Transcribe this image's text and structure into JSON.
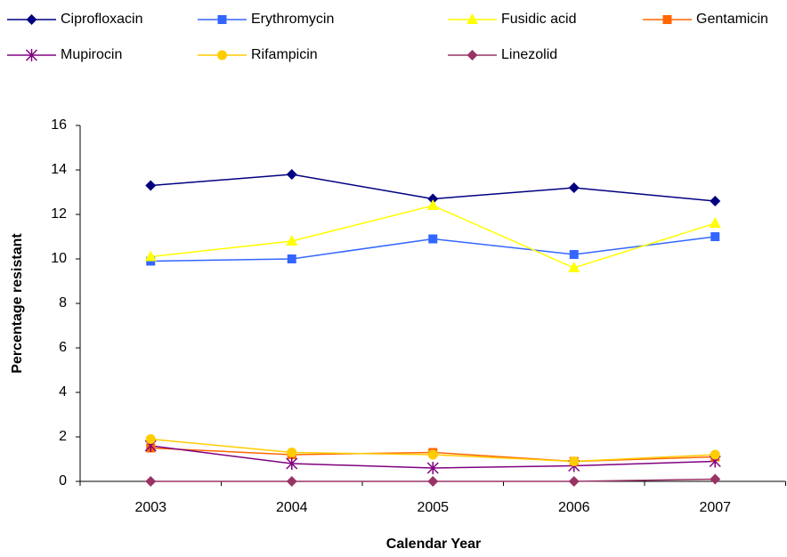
{
  "chart_data": {
    "type": "line",
    "xlabel": "Calendar Year",
    "ylabel": "Percentage resistant",
    "categories": [
      "2003",
      "2004",
      "2005",
      "2006",
      "2007"
    ],
    "ylim": [
      0,
      16
    ],
    "yticks": [
      0,
      2,
      4,
      6,
      8,
      10,
      12,
      14,
      16
    ],
    "grid": false,
    "legend": "top",
    "series": [
      {
        "name": "Ciprofloxacin",
        "color": "#000080",
        "marker": "diamond",
        "values": [
          13.3,
          13.8,
          12.7,
          13.2,
          12.6
        ]
      },
      {
        "name": "Erythromycin",
        "color": "#3366ff",
        "marker": "square",
        "values": [
          9.9,
          10.0,
          10.9,
          10.2,
          11.0
        ]
      },
      {
        "name": "Fusidic acid",
        "color": "#ffff00",
        "marker": "triangle",
        "values": [
          10.1,
          10.8,
          12.4,
          9.6,
          11.6
        ]
      },
      {
        "name": "Gentamicin",
        "color": "#ff6600",
        "marker": "square",
        "values": [
          1.5,
          1.2,
          1.3,
          0.9,
          1.1
        ]
      },
      {
        "name": "Mupirocin",
        "color": "#800080",
        "marker": "asterisk",
        "values": [
          1.6,
          0.8,
          0.6,
          0.7,
          0.9
        ]
      },
      {
        "name": "Rifampicin",
        "color": "#ffcc00",
        "marker": "circle",
        "values": [
          1.9,
          1.3,
          1.2,
          0.9,
          1.2
        ]
      },
      {
        "name": "Linezolid",
        "color": "#993366",
        "marker": "diamond",
        "values": [
          0,
          0,
          0,
          0,
          0.1
        ]
      }
    ]
  }
}
